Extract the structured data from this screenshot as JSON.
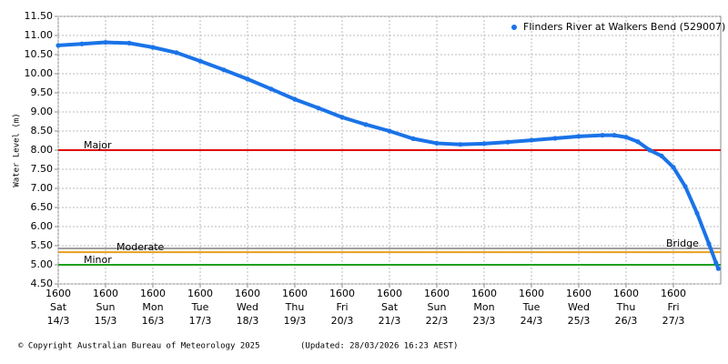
{
  "chart_data": {
    "type": "scatter",
    "y_label": "Water Level (m)",
    "legend_position": "top-right",
    "grid": true,
    "series": [
      {
        "name": "Flinders River at Walkers Bend (529007)",
        "color": "#1a73e8",
        "x": [
          0,
          0.5,
          1,
          1.5,
          2,
          2.5,
          3,
          3.5,
          4,
          4.5,
          5,
          5.5,
          6,
          6.5,
          7,
          7.5,
          8,
          8.5,
          9,
          9.5,
          10,
          10.5,
          11,
          11.5,
          11.75,
          12,
          12.25,
          12.5,
          12.75,
          13,
          13.25,
          13.5,
          13.75,
          13.9,
          13.95
        ],
        "values": [
          10.74,
          10.78,
          10.82,
          10.8,
          10.69,
          10.55,
          10.33,
          10.1,
          9.86,
          9.6,
          9.33,
          9.1,
          8.86,
          8.67,
          8.5,
          8.3,
          8.18,
          8.15,
          8.17,
          8.21,
          8.26,
          8.31,
          8.36,
          8.39,
          8.39,
          8.34,
          8.22,
          8.0,
          7.85,
          7.55,
          7.05,
          6.35,
          5.55,
          5.05,
          4.9
        ]
      }
    ],
    "thresholds": [
      {
        "name": "Major",
        "value": 8.0,
        "color": "#e00000"
      },
      {
        "name": "Bridge",
        "value": 5.43,
        "color": "#a0a0a0"
      },
      {
        "name": "Moderate",
        "value": 5.33,
        "color": "#e8a020"
      },
      {
        "name": "Minor",
        "value": 5.0,
        "color": "#1ea01e"
      }
    ],
    "xlim": [
      0,
      14
    ],
    "xticks": [
      {
        "value": 0,
        "label": "1600"
      },
      {
        "value": 1,
        "label": "1600"
      },
      {
        "value": 2,
        "label": "1600"
      },
      {
        "value": 3,
        "label": "1600"
      },
      {
        "value": 4,
        "label": "1600"
      },
      {
        "value": 5,
        "label": "1600"
      },
      {
        "value": 6,
        "label": "1600"
      },
      {
        "value": 7,
        "label": "1600"
      },
      {
        "value": 8,
        "label": "1600"
      },
      {
        "value": 9,
        "label": "1600"
      },
      {
        "value": 10,
        "label": "1600"
      },
      {
        "value": 11,
        "label": "1600"
      },
      {
        "value": 12,
        "label": "1600"
      },
      {
        "value": 13,
        "label": "1600"
      }
    ],
    "xtick_days": [
      "Sat",
      "Sun",
      "Mon",
      "Tue",
      "Wed",
      "Thu",
      "Fri",
      "Sat",
      "Sun",
      "Mon",
      "Tue",
      "Wed",
      "Thu",
      "Fri"
    ],
    "xtick_dates": [
      "14/3",
      "15/3",
      "16/3",
      "17/3",
      "18/3",
      "19/3",
      "20/3",
      "21/3",
      "22/3",
      "23/3",
      "24/3",
      "25/3",
      "26/3",
      "27/3"
    ],
    "ylim": [
      4.5,
      11.5
    ],
    "yticks": [
      {
        "value": 4.5,
        "label": "4.50"
      },
      {
        "value": 5.0,
        "label": "5.00"
      },
      {
        "value": 5.5,
        "label": "5.50"
      },
      {
        "value": 6.0,
        "label": "6.00"
      },
      {
        "value": 6.5,
        "label": "6.50"
      },
      {
        "value": 7.0,
        "label": "7.00"
      },
      {
        "value": 7.5,
        "label": "7.50"
      },
      {
        "value": 8.0,
        "label": "8.00"
      },
      {
        "value": 8.5,
        "label": "8.50"
      },
      {
        "value": 9.0,
        "label": "9.00"
      },
      {
        "value": 9.5,
        "label": "9.50"
      },
      {
        "value": 10.0,
        "label": "10.00"
      },
      {
        "value": 10.5,
        "label": "10.50"
      },
      {
        "value": 11.0,
        "label": "11.00"
      },
      {
        "value": 11.5,
        "label": "11.50"
      }
    ],
    "copyright": "© Copyright Australian Bureau of Meteorology 2025",
    "updated": "(Updated: 28/03/2026 16:23 AEST)"
  }
}
